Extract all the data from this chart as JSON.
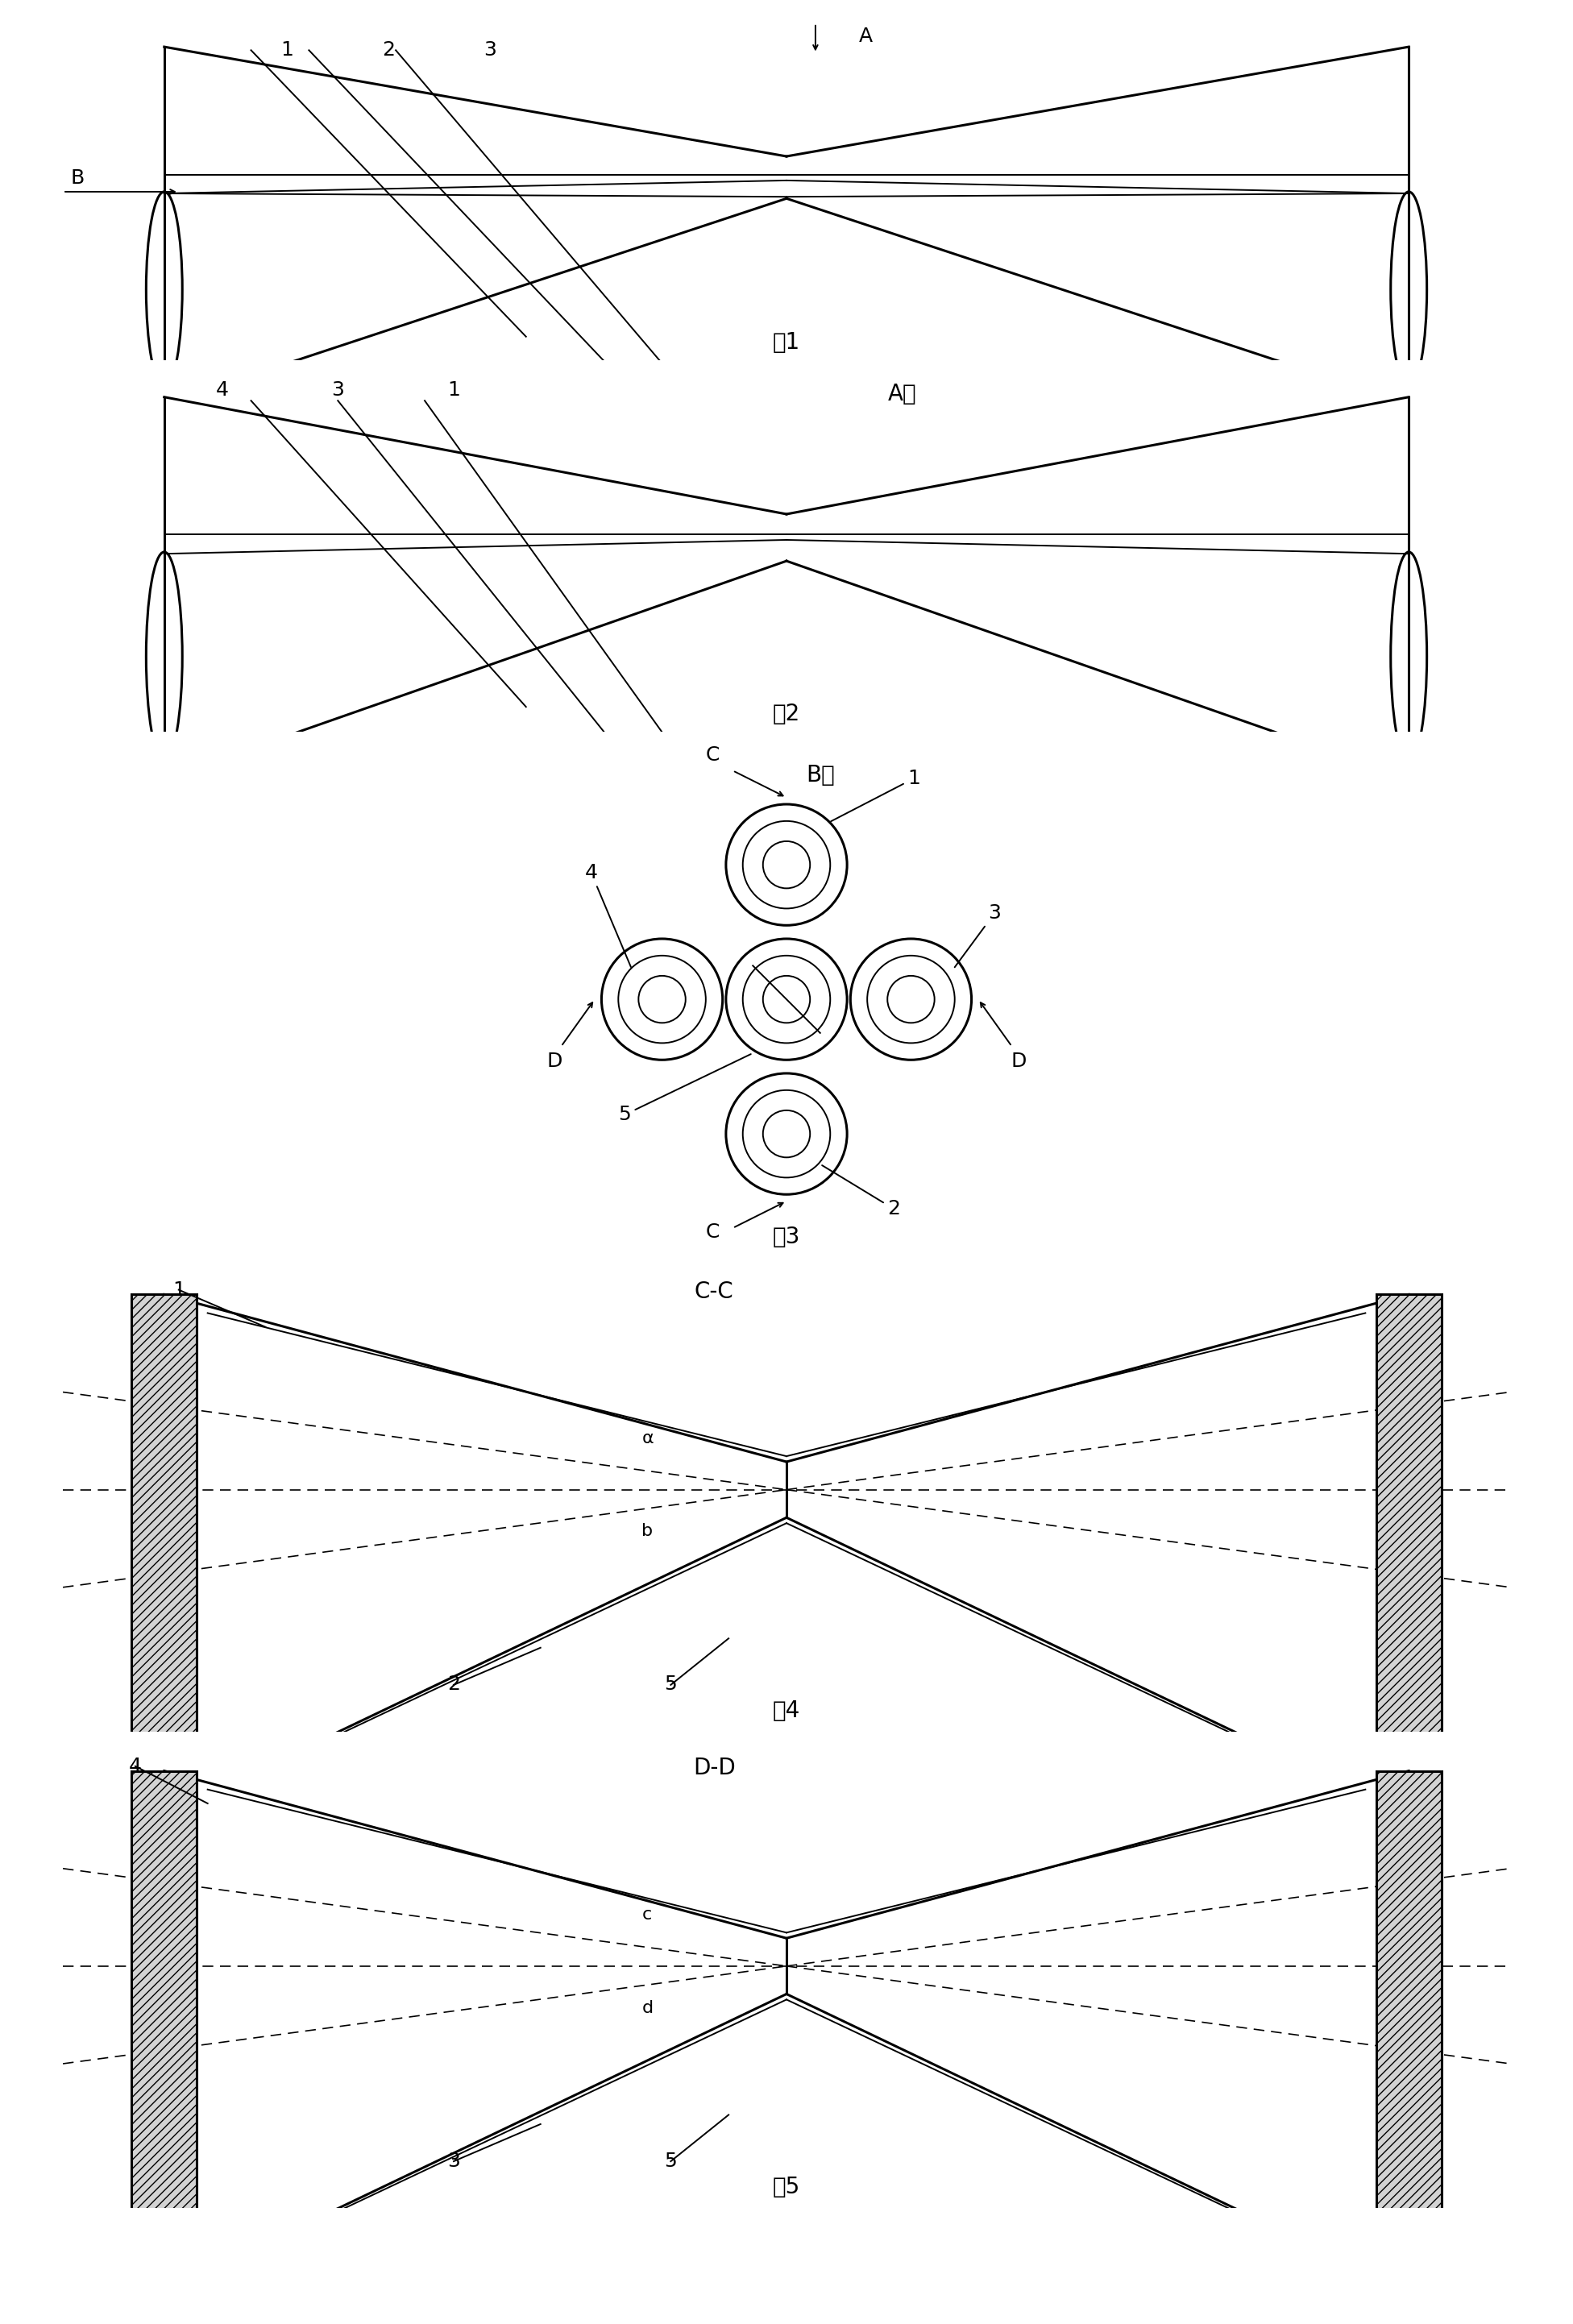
{
  "bg_color": "#ffffff",
  "line_color": "#000000",
  "fig_width": 19.52,
  "fig_height": 28.84,
  "figures": [
    {
      "label": "图1",
      "title": ""
    },
    {
      "label": "图2",
      "title": "A向"
    },
    {
      "label": "图3",
      "title": "B向"
    },
    {
      "label": "图4",
      "title": "C-C"
    },
    {
      "label": "图5",
      "title": "D-D"
    }
  ]
}
